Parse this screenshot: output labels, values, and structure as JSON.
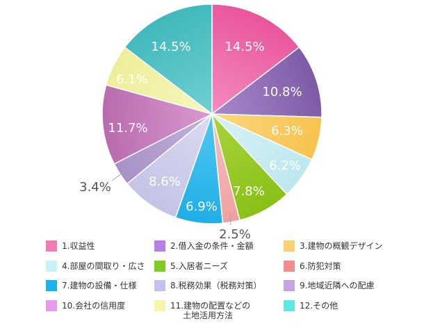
{
  "chart_data": {
    "type": "pie",
    "title": "",
    "start_angle_deg": 0,
    "direction": "clockwise",
    "slices": [
      {
        "legend": "1.収益性",
        "label": "14.5%",
        "value": 14.5,
        "color": "#e8559a",
        "color_light": "#f48cc0"
      },
      {
        "legend": "2.借入金の条件・金額",
        "label": "10.8%",
        "value": 10.8,
        "color": "#7d5aa6",
        "color_light": "#a889cc"
      },
      {
        "legend": "3.建物の概観デザイン",
        "label": "6.3%",
        "value": 6.3,
        "color": "#f7c34d",
        "color_light": "#fad67f"
      },
      {
        "legend": "4.部屋の間取り・広さ",
        "label": "6.2%",
        "value": 6.2,
        "color": "#bde8ee",
        "color_light": "#d6f2f5"
      },
      {
        "legend": "5.入居者ニーズ",
        "label": "7.8%",
        "value": 7.8,
        "color": "#8ac016",
        "color_light": "#a9d43c"
      },
      {
        "legend": "6.防犯対策",
        "label": "2.5%",
        "value": 2.5,
        "color": "#f0a0a0",
        "color_light": "#f6c1c1"
      },
      {
        "legend": "7.建物の設備・仕様",
        "label": "6.9%",
        "value": 6.9,
        "color": "#1eaee6",
        "color_light": "#52c8f2"
      },
      {
        "legend": "8.税務効果（税務対策）",
        "label": "8.6%",
        "value": 8.6,
        "color": "#c3c3e6",
        "color_light": "#dadaf2"
      },
      {
        "legend": "9.地域近隣への配慮",
        "label": "3.4%",
        "value": 3.4,
        "color": "#a890c6",
        "color_light": "#c4b3dc"
      },
      {
        "legend": "10.会社の信用度",
        "label": "11.7%",
        "value": 11.7,
        "color": "#b86aae",
        "color_light": "#d99ad0"
      },
      {
        "legend": "11.建物の配置などの\n土地活用方法",
        "label": "6.1%",
        "value": 6.1,
        "color": "#eeee99",
        "color_light": "#f6f6bc"
      },
      {
        "legend": "12.その他",
        "label": "14.5%",
        "value": 14.5,
        "color": "#3fb8bc",
        "color_light": "#6fd0d2"
      }
    ],
    "legend_colors": [
      "#f07cb6",
      "#b77fe6",
      "#fbd271",
      "#c6f4f6",
      "#80cc1e",
      "#f48c8c",
      "#1ab4ec",
      "#c2c2f0",
      "#c7a3e6",
      "#e89aee",
      "#f6f6aa",
      "#5fe8e0"
    ],
    "outside_labels": [
      "2.5%",
      "3.4%"
    ],
    "legend_placement": "bottom",
    "legend_columns": 3
  }
}
